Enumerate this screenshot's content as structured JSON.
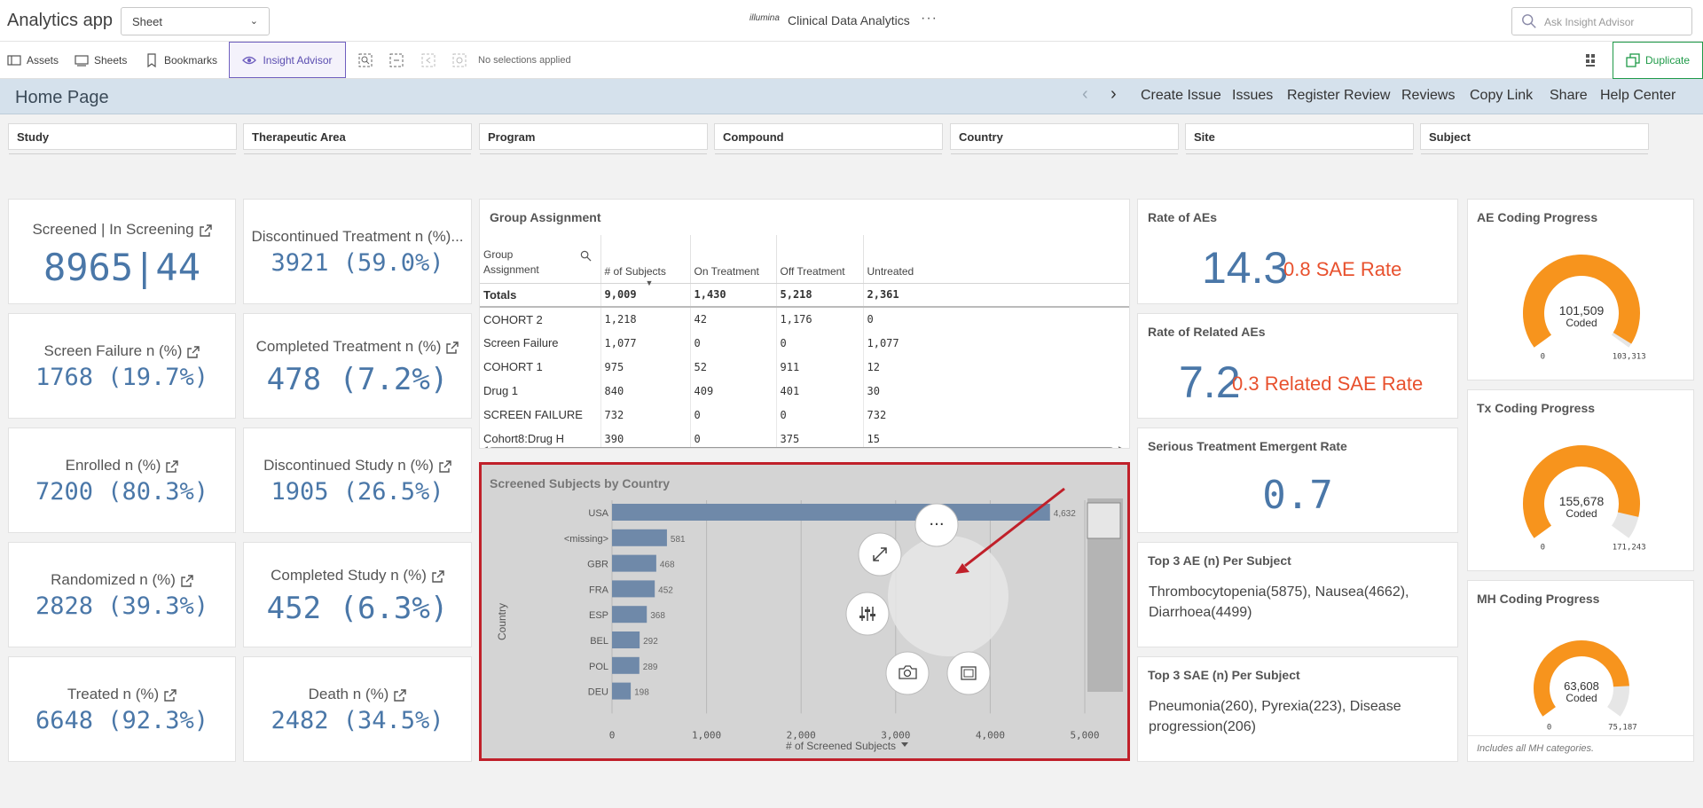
{
  "topbar": {
    "app_name": "Analytics app",
    "sheet_select": "Sheet",
    "brand": "illumina",
    "title": "Clinical Data Analytics",
    "more": "···",
    "ask_placeholder": "Ask Insight Advisor"
  },
  "toolbar": {
    "assets": "Assets",
    "sheets": "Sheets",
    "bookmarks": "Bookmarks",
    "insight_advisor": "Insight Advisor",
    "no_selections": "No selections applied",
    "duplicate": "Duplicate"
  },
  "homebar": {
    "title": "Home Page",
    "links": [
      "Create Issue",
      "Issues",
      "Register Review",
      "Reviews",
      "Copy Link",
      "Share",
      "Help Center"
    ]
  },
  "filters": [
    "Study",
    "Therapeutic Area",
    "Program",
    "Compound",
    "Country",
    "Site",
    "Subject"
  ],
  "kpis_left": [
    {
      "label": "Screened | In Screening",
      "value": "8965|44"
    },
    {
      "label": "Screen Failure n (%)",
      "value": "1768 (19.7%)"
    },
    {
      "label": "Enrolled n (%)",
      "value": "7200 (80.3%)"
    },
    {
      "label": "Randomized n (%)",
      "value": "2828 (39.3%)"
    },
    {
      "label": "Treated n (%)",
      "value": "6648 (92.3%)"
    }
  ],
  "kpis_mid": [
    {
      "label": "Discontinued Treatment n (%)...",
      "value": "3921 (59.0%)"
    },
    {
      "label": "Completed Treatment n (%)",
      "value": "478 (7.2%)"
    },
    {
      "label": "Discontinued Study n (%)",
      "value": "1905 (26.5%)"
    },
    {
      "label": "Completed Study n (%)",
      "value": "452 (6.3%)"
    },
    {
      "label": "Death n (%)",
      "value": "2482 (34.5%)"
    }
  ],
  "group_assignment": {
    "title": "Group Assignment",
    "headers": [
      "Group Assignment",
      "# of Subjects",
      "On Treatment",
      "Off Treatment",
      "Untreated"
    ],
    "totals": [
      "Totals",
      "9,009",
      "1,430",
      "5,218",
      "2,361"
    ],
    "rows": [
      [
        "COHORT 2",
        "1,218",
        "42",
        "1,176",
        "0"
      ],
      [
        "Screen Failure",
        "1,077",
        "0",
        "0",
        "1,077"
      ],
      [
        "COHORT 1",
        "975",
        "52",
        "911",
        "12"
      ],
      [
        "Drug 1",
        "840",
        "409",
        "401",
        "30"
      ],
      [
        "SCREEN FAILURE",
        "732",
        "0",
        "0",
        "732"
      ],
      [
        "Cohort8:Drug H",
        "390",
        "0",
        "375",
        "15"
      ]
    ]
  },
  "rates": {
    "aes": {
      "title": "Rate of AEs",
      "value": "14.3",
      "sub": "0.8 SAE Rate"
    },
    "related": {
      "title": "Rate of Related AEs",
      "value": "7.2",
      "sub": "0.3 Related SAE Rate"
    },
    "serious": {
      "title": "Serious Treatment Emergent Rate",
      "value": "0.7"
    },
    "top3ae": {
      "title": "Top 3 AE (n) Per Subject",
      "text": "Thrombocytopenia(5875), Nausea(4662), Diarrhoea(4499)"
    },
    "top3sae": {
      "title": "Top 3 SAE (n) Per Subject",
      "text": "Pneumonia(260), Pyrexia(223), Disease progression(206)"
    }
  },
  "gauges": [
    {
      "title": "AE Coding Progress",
      "value": "101,509",
      "label": "Coded",
      "min": "0",
      "max": "103,313",
      "progress": 0.9825
    },
    {
      "title": "Tx Coding Progress",
      "value": "155,678",
      "label": "Coded",
      "min": "0",
      "max": "171,243",
      "progress": 0.909
    },
    {
      "title": "MH Coding Progress",
      "value": "63,608",
      "label": "Coded",
      "min": "0",
      "max": "75,187",
      "progress": 0.846
    }
  ],
  "mh_footnote": "Includes all MH categories.",
  "colors": {
    "accent": "#4a77a8",
    "sae": "#e8512e",
    "gauge": "#f7941d",
    "highlight": "#c0202a",
    "insight": "#6f5fbf",
    "duplicate": "#1f9a48"
  },
  "chart_data": {
    "type": "bar",
    "title": "Screened Subjects by Country",
    "xlabel": "# of Screened Subjects",
    "ylabel": "Country",
    "categories": [
      "USA",
      "<missing>",
      "GBR",
      "FRA",
      "ESP",
      "BEL",
      "POL",
      "DEU"
    ],
    "values": [
      4632,
      581,
      468,
      452,
      368,
      292,
      289,
      198
    ],
    "xlim": [
      0,
      5000
    ],
    "xticks": [
      "0",
      "1,000",
      "2,000",
      "3,000",
      "4,000",
      "5,000"
    ],
    "grid": true,
    "orientation": "horizontal"
  }
}
